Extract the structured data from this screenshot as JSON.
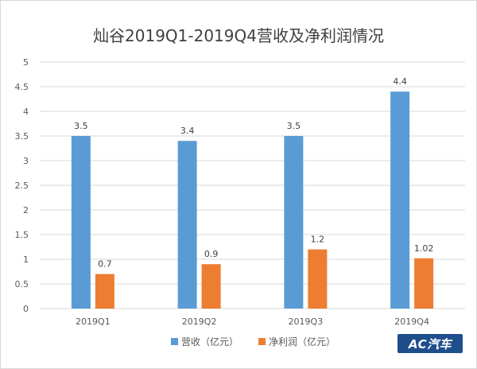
{
  "chart_data": {
    "type": "bar",
    "title": "灿谷2019Q1-2019Q4营收及净利润情况",
    "categories": [
      "2019Q1",
      "2019Q2",
      "2019Q3",
      "2019Q4"
    ],
    "series": [
      {
        "name": "营收（亿元）",
        "values": [
          3.5,
          3.4,
          3.5,
          4.4
        ],
        "labels": [
          "3.5",
          "3.4",
          "3.5",
          "4.4"
        ],
        "color": "#5B9BD5"
      },
      {
        "name": "净利润（亿元）",
        "values": [
          0.7,
          0.9,
          1.2,
          1.02
        ],
        "labels": [
          "0.7",
          "0.9",
          "1.2",
          "1.02"
        ],
        "color": "#ED7D31"
      }
    ],
    "ylim": [
      0,
      5
    ],
    "yticks": [
      "0",
      "0.5",
      "1",
      "1.5",
      "2",
      "2.5",
      "3",
      "3.5",
      "4",
      "4.5",
      "5"
    ],
    "grid": true,
    "legend": "bottom"
  },
  "watermark": {
    "brand": "AC汽车"
  },
  "colors": {
    "gridline": "#d9d9d9",
    "text": "#595959",
    "title": "#404040"
  }
}
